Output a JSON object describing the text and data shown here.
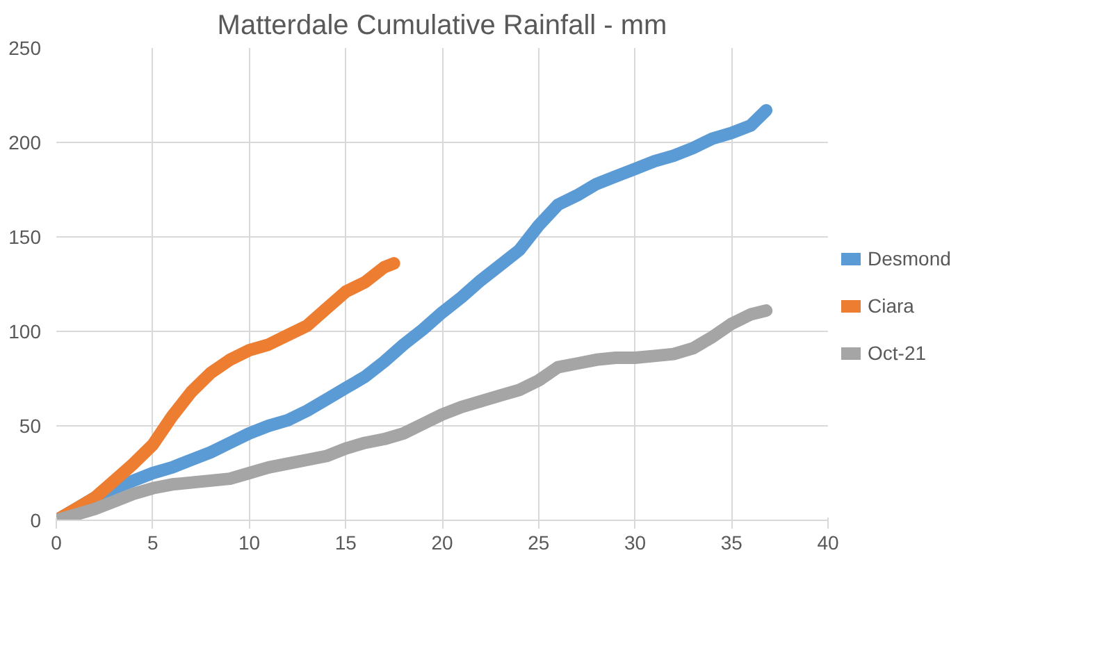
{
  "chart_data": {
    "type": "line",
    "title": "Matterdale Cumulative Rainfall - mm",
    "xlim": [
      0,
      40
    ],
    "xticks": [
      0,
      5,
      10,
      15,
      20,
      25,
      30,
      35,
      40
    ],
    "ylim": [
      0,
      250
    ],
    "yticks": [
      0,
      50,
      100,
      150,
      200,
      250
    ],
    "grid": true,
    "legend": "right",
    "series": [
      {
        "name": "Desmond",
        "color": "#5b9bd5",
        "x": [
          0,
          1,
          2,
          3,
          4,
          5,
          6,
          7,
          8,
          9,
          10,
          11,
          12,
          13,
          14,
          15,
          16,
          17,
          18,
          19,
          20,
          21,
          22,
          23,
          24,
          25,
          26,
          27,
          28,
          29,
          30,
          31,
          32,
          33,
          34,
          35,
          36,
          36.8
        ],
        "values": [
          0,
          6,
          12,
          17,
          21,
          25,
          28,
          32,
          36,
          41,
          46,
          50,
          53,
          58,
          64,
          70,
          76,
          84,
          93,
          101,
          110,
          118,
          127,
          135,
          143,
          156,
          167,
          172,
          178,
          182,
          186,
          190,
          193,
          197,
          202,
          205,
          209,
          217
        ]
      },
      {
        "name": "Ciara",
        "color": "#ed7d31",
        "x": [
          0,
          1,
          2,
          3,
          4,
          5,
          6,
          7,
          8,
          9,
          10,
          11,
          12,
          13,
          14,
          15,
          16,
          17,
          17.5
        ],
        "values": [
          0,
          6,
          12,
          21,
          30,
          40,
          55,
          68,
          78,
          85,
          90,
          93,
          98,
          103,
          112,
          121,
          126,
          134,
          136
        ]
      },
      {
        "name": "Oct-21",
        "color": "#a5a5a5",
        "x": [
          0,
          1,
          2,
          3,
          4,
          5,
          6,
          7,
          8,
          9,
          10,
          11,
          12,
          13,
          14,
          15,
          16,
          17,
          18,
          19,
          20,
          21,
          22,
          23,
          24,
          25,
          26,
          27,
          28,
          29,
          30,
          31,
          32,
          33,
          34,
          35,
          36,
          36.8
        ],
        "values": [
          0,
          3,
          6,
          10,
          14,
          17,
          19,
          20,
          21,
          22,
          25,
          28,
          30,
          32,
          34,
          38,
          41,
          43,
          46,
          51,
          56,
          60,
          63,
          66,
          69,
          74,
          81,
          83,
          85,
          86,
          86,
          87,
          88,
          91,
          97,
          104,
          109,
          111
        ]
      }
    ]
  }
}
